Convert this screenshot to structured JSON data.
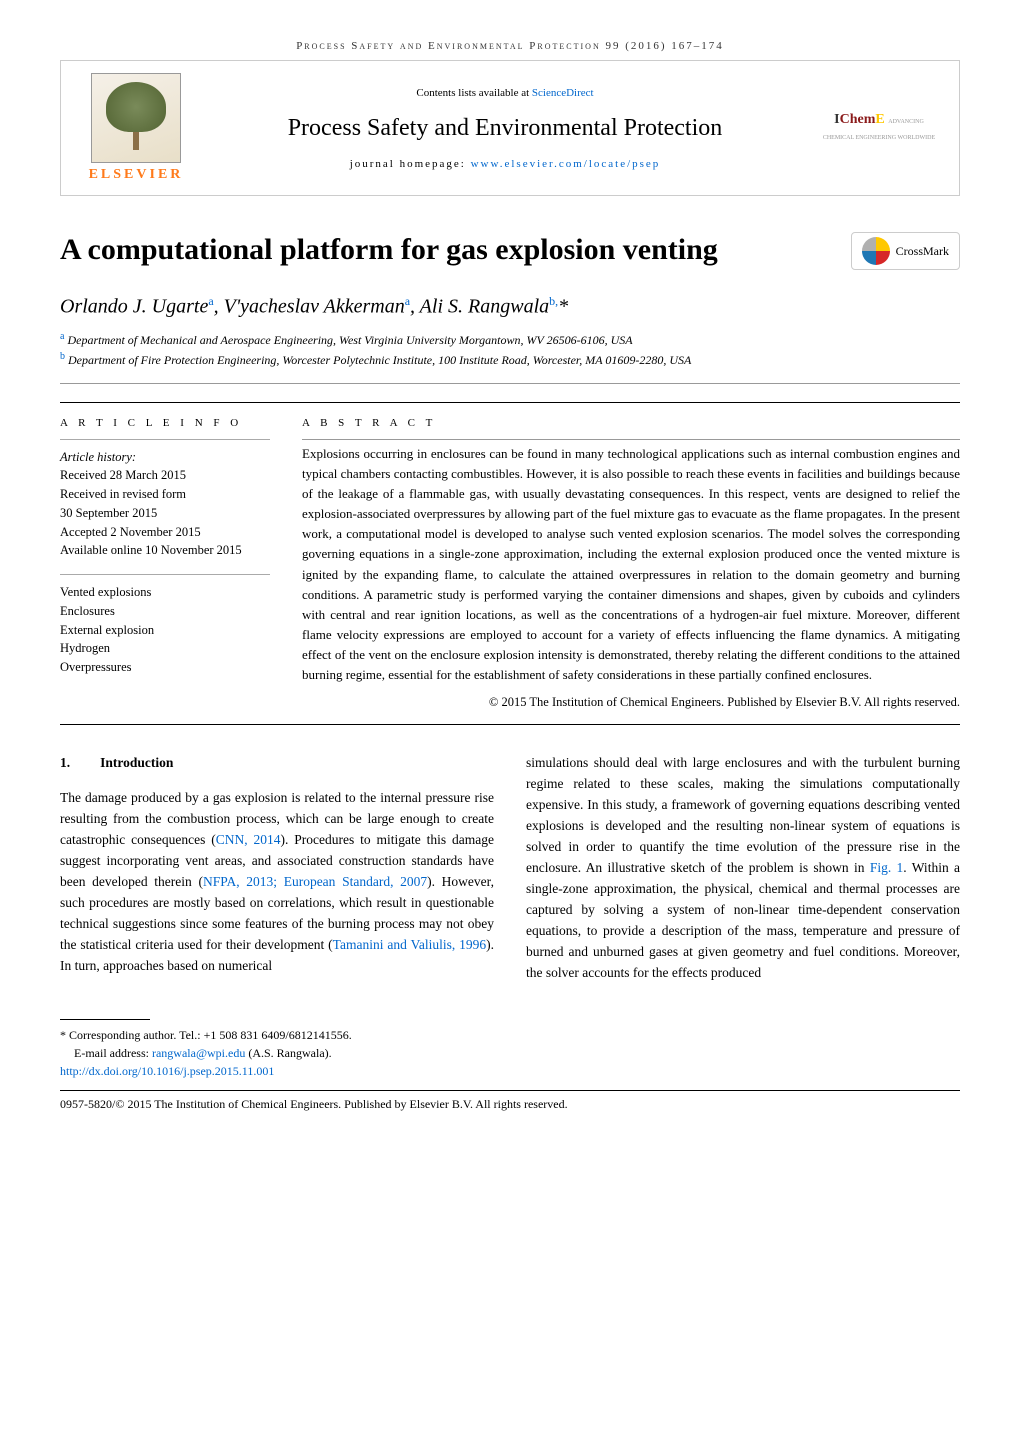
{
  "header": {
    "running": "Process Safety and Environmental Protection 99 (2016) 167–174",
    "avail_prefix": "Contents lists available at ",
    "avail_link": "ScienceDirect",
    "journal_title": "Process Safety and Environmental Protection",
    "homepage_prefix": "journal homepage: ",
    "homepage_link": "www.elsevier.com/locate/psep",
    "publisher": "ELSEVIER",
    "icheme": {
      "i": "I",
      "chem": "Chem",
      "e": "E",
      "sub": "ADVANCING\nCHEMICAL\nENGINEERING\nWORLDWIDE"
    }
  },
  "crossmark": "CrossMark",
  "title": "A computational platform for gas explosion venting",
  "authors_html": "Orlando J. Ugarte<sup>a</sup>, V'yacheslav Akkerman<sup>a</sup>, Ali S. Rangwala<sup>b,</sup>*",
  "affiliations": [
    {
      "sup": "a",
      "text": "Department of Mechanical and Aerospace Engineering, West Virginia University Morgantown, WV 26506-6106, USA"
    },
    {
      "sup": "b",
      "text": "Department of Fire Protection Engineering, Worcester Polytechnic Institute, 100 Institute Road, Worcester, MA 01609-2280, USA"
    }
  ],
  "article_info": {
    "heading": "a r t i c l e   i n f o",
    "history_label": "Article history:",
    "history": [
      "Received 28 March 2015",
      "Received in revised form",
      "30 September 2015",
      "Accepted 2 November 2015",
      "Available online 10 November 2015"
    ],
    "keywords": [
      "Vented explosions",
      "Enclosures",
      "External explosion",
      "Hydrogen",
      "Overpressures"
    ]
  },
  "abstract": {
    "heading": "a b s t r a c t",
    "text": "Explosions occurring in enclosures can be found in many technological applications such as internal combustion engines and typical chambers contacting combustibles. However, it is also possible to reach these events in facilities and buildings because of the leakage of a flammable gas, with usually devastating consequences. In this respect, vents are designed to relief the explosion-associated overpressures by allowing part of the fuel mixture gas to evacuate as the flame propagates. In the present work, a computational model is developed to analyse such vented explosion scenarios. The model solves the corresponding governing equations in a single-zone approximation, including the external explosion produced once the vented mixture is ignited by the expanding flame, to calculate the attained overpressures in relation to the domain geometry and burning conditions. A parametric study is performed varying the container dimensions and shapes, given by cuboids and cylinders with central and rear ignition locations, as well as the concentrations of a hydrogen-air fuel mixture. Moreover, different flame velocity expressions are employed to account for a variety of effects influencing the flame dynamics. A mitigating effect of the vent on the enclosure explosion intensity is demonstrated, thereby relating the different conditions to the attained burning regime, essential for the establishment of safety considerations in these partially confined enclosures.",
    "copyright": "© 2015 The Institution of Chemical Engineers. Published by Elsevier B.V. All rights reserved."
  },
  "body": {
    "section_num": "1.",
    "section_title": "Introduction",
    "col1": "The damage produced by a gas explosion is related to the internal pressure rise resulting from the combustion process, which can be large enough to create catastrophic consequences (<a>CNN, 2014</a>). Procedures to mitigate this damage suggest incorporating vent areas, and associated construction standards have been developed therein (<a>NFPA, 2013; European Standard, 2007</a>). However, such procedures are mostly based on correlations, which result in questionable technical suggestions since some features of the burning process may not obey the statistical criteria used for their development (<a>Tamanini and Valiulis, 1996</a>). In turn, approaches based on numerical",
    "col2": "simulations should deal with large enclosures and with the turbulent burning regime related to these scales, making the simulations computationally expensive. In this study, a framework of governing equations describing vented explosions is developed and the resulting non-linear system of equations is solved in order to quantify the time evolution of the pressure rise in the enclosure. An illustrative sketch of the problem is shown in <a>Fig. 1</a>. Within a single-zone approximation, the physical, chemical and thermal processes are captured by solving a system of non-linear time-dependent conservation equations, to provide a description of the mass, temperature and pressure of burned and unburned gases at given geometry and fuel conditions. Moreover, the solver accounts for the effects produced"
  },
  "footer": {
    "corresponding": "* Corresponding author. Tel.: +1 508 831 6409/6812141556.",
    "email_label": "E-mail address: ",
    "email": "rangwala@wpi.edu",
    "email_suffix": " (A.S. Rangwala).",
    "doi": "http://dx.doi.org/10.1016/j.psep.2015.11.001",
    "issn_line": "0957-5820/© 2015 The Institution of Chemical Engineers. Published by Elsevier B.V. All rights reserved."
  },
  "colors": {
    "link": "#0066cc",
    "elsevier": "#ff7a1a",
    "ichem_chem": "#8b1a1a",
    "ichem_e": "#ffc800"
  }
}
